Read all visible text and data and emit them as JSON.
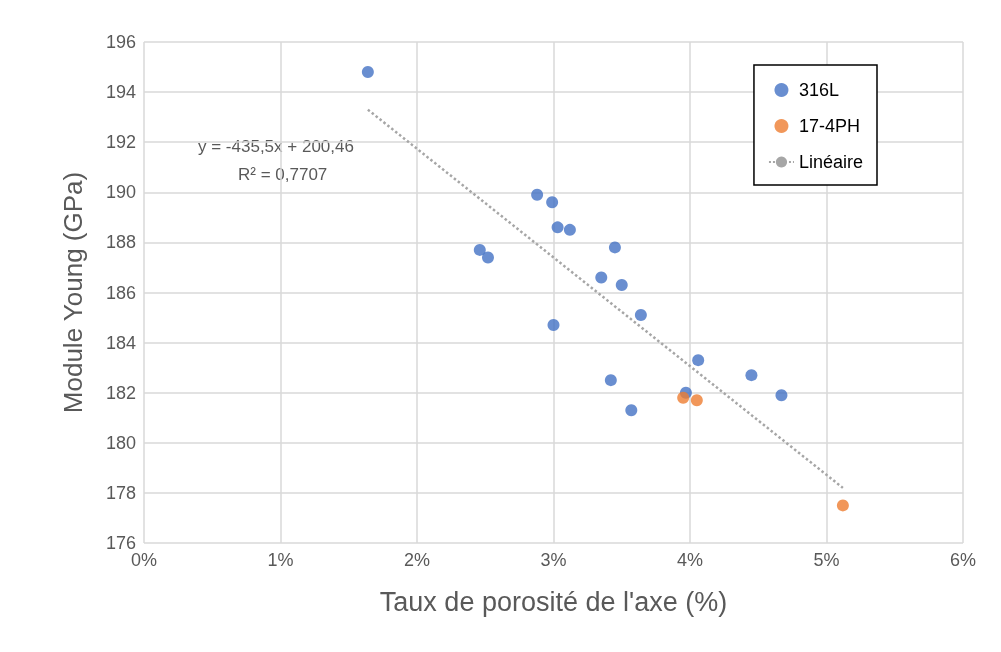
{
  "chart_data": {
    "type": "scatter",
    "xlabel": "Taux de porosité de l'axe (%)",
    "ylabel": "Module Young (GPa)",
    "series": [
      {
        "name": "316L",
        "color": "#4472c4",
        "x": [
          1.64,
          2.88,
          2.99,
          3.03,
          3.12,
          2.46,
          2.52,
          3.45,
          3.35,
          3.5,
          3.64,
          3.0,
          4.06,
          3.42,
          4.45,
          3.97,
          4.67,
          3.57
        ],
        "values": [
          194.8,
          189.9,
          189.6,
          188.6,
          188.5,
          187.7,
          187.4,
          187.8,
          186.6,
          186.3,
          185.1,
          184.7,
          183.3,
          182.5,
          182.7,
          182.0,
          181.9,
          181.3
        ]
      },
      {
        "name": "17-4PH",
        "color": "#ed7d31",
        "x": [
          3.95,
          4.05,
          5.12
        ],
        "values": [
          181.8,
          181.7,
          177.5
        ]
      },
      {
        "name": "Linéaire",
        "type": "line",
        "color": "#a6a6a6",
        "line_style": "dotted",
        "marker": "none",
        "x": [
          1.64,
          5.12
        ],
        "values": [
          193.3,
          178.2
        ]
      }
    ],
    "annotations": [
      "y = -435,5x + 200,46",
      "R² = 0,7707"
    ],
    "xlim": [
      0,
      6
    ],
    "xticks": [
      {
        "value": 0,
        "label": "0%"
      },
      {
        "value": 1,
        "label": "1%"
      },
      {
        "value": 2,
        "label": "2%"
      },
      {
        "value": 3,
        "label": "3%"
      },
      {
        "value": 4,
        "label": "4%"
      },
      {
        "value": 5,
        "label": "5%"
      },
      {
        "value": 6,
        "label": "6%"
      }
    ],
    "ylim": [
      176,
      196
    ],
    "yticks": [
      176,
      178,
      180,
      182,
      184,
      186,
      188,
      190,
      192,
      194,
      196
    ],
    "grid": true,
    "legend": "top right",
    "marker": "circle"
  }
}
